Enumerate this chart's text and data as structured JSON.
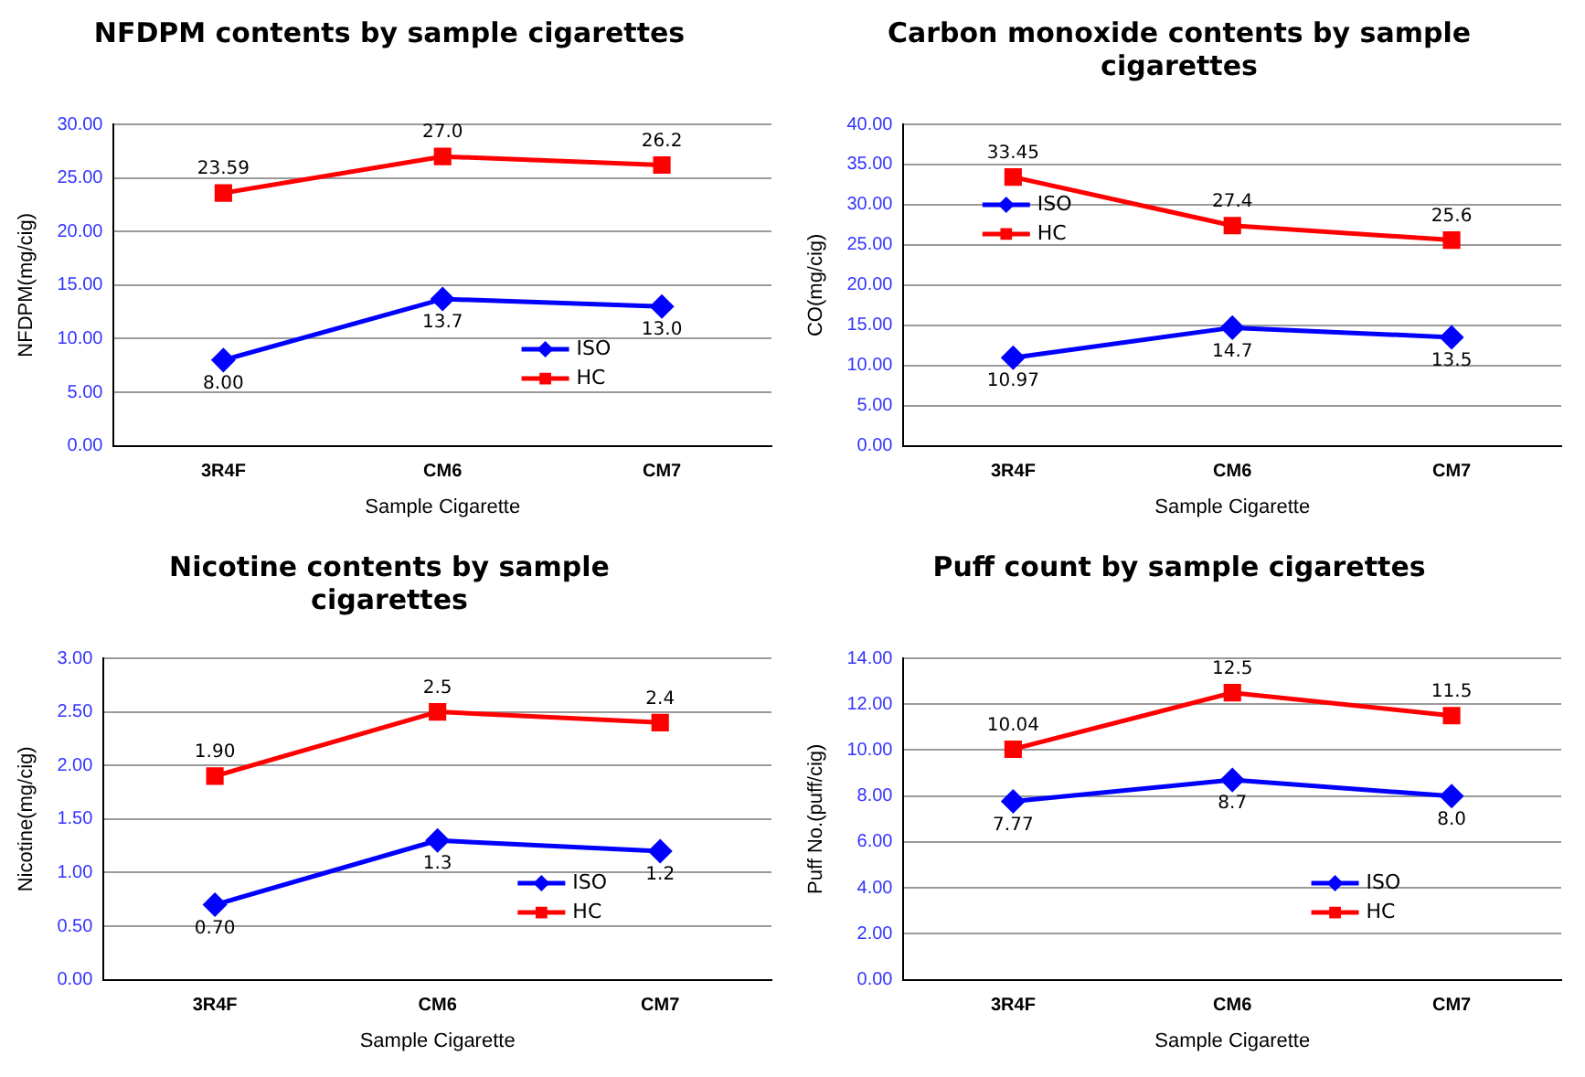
{
  "chart_data": [
    {
      "type": "line",
      "title": "NFDPM contents by sample cigarettes",
      "xlabel": "Sample Cigarette",
      "ylabel": "NFDPM(mg/cig)",
      "categories": [
        "3R4F",
        "CM6",
        "CM7"
      ],
      "series": [
        {
          "name": "ISO",
          "color": "#0000ff",
          "marker": "diamond",
          "values": [
            8.0,
            13.7,
            13.0
          ],
          "value_labels": [
            "8.00",
            "13.7",
            "13.0"
          ]
        },
        {
          "name": "HC",
          "color": "#ff0000",
          "marker": "square",
          "values": [
            23.59,
            27.0,
            26.2
          ],
          "value_labels": [
            "23.59",
            "27.0",
            "26.2"
          ]
        }
      ],
      "ylim": [
        0,
        30
      ],
      "yticks": [
        {
          "value": 0,
          "label": "0.00"
        },
        {
          "value": 5,
          "label": "5.00"
        },
        {
          "value": 10,
          "label": "10.00"
        },
        {
          "value": 15,
          "label": "15.00"
        },
        {
          "value": 20,
          "label": "20.00"
        },
        {
          "value": 25,
          "label": "25.00"
        },
        {
          "value": 30,
          "label": "30.00"
        }
      ],
      "grid": "y",
      "legend": "bottom right"
    },
    {
      "type": "line",
      "title": "Carbon monoxide contents by sample cigarettes",
      "xlabel": "Sample Cigarette",
      "ylabel": "CO(mg/cig)",
      "categories": [
        "3R4F",
        "CM6",
        "CM7"
      ],
      "series": [
        {
          "name": "ISO",
          "color": "#0000ff",
          "marker": "diamond",
          "values": [
            10.97,
            14.7,
            13.5
          ],
          "value_labels": [
            "10.97",
            "14.7",
            "13.5"
          ]
        },
        {
          "name": "HC",
          "color": "#ff0000",
          "marker": "square",
          "values": [
            33.45,
            27.4,
            25.6
          ],
          "value_labels": [
            "33.45",
            "27.4",
            "25.6"
          ]
        }
      ],
      "ylim": [
        0,
        40
      ],
      "yticks": [
        {
          "value": 0,
          "label": "0.00"
        },
        {
          "value": 5,
          "label": "5.00"
        },
        {
          "value": 10,
          "label": "10.00"
        },
        {
          "value": 15,
          "label": "15.00"
        },
        {
          "value": 20,
          "label": "20.00"
        },
        {
          "value": 25,
          "label": "25.00"
        },
        {
          "value": 30,
          "label": "30.00"
        },
        {
          "value": 35,
          "label": "35.00"
        },
        {
          "value": 40,
          "label": "40.00"
        }
      ],
      "grid": "y",
      "legend": "left"
    },
    {
      "type": "line",
      "title": "Nicotine contents by sample cigarettes",
      "xlabel": "Sample Cigarette",
      "ylabel": "Nicotine(mg/cig)",
      "categories": [
        "3R4F",
        "CM6",
        "CM7"
      ],
      "series": [
        {
          "name": "ISO",
          "color": "#0000ff",
          "marker": "diamond",
          "values": [
            0.7,
            1.3,
            1.2
          ],
          "value_labels": [
            "0.70",
            "1.3",
            "1.2"
          ]
        },
        {
          "name": "HC",
          "color": "#ff0000",
          "marker": "square",
          "values": [
            1.9,
            2.5,
            2.4
          ],
          "value_labels": [
            "1.90",
            "2.5",
            "2.4"
          ]
        }
      ],
      "ylim": [
        0,
        3
      ],
      "yticks": [
        {
          "value": 0,
          "label": "0.00"
        },
        {
          "value": 0.5,
          "label": "0.50"
        },
        {
          "value": 1,
          "label": "1.00"
        },
        {
          "value": 1.5,
          "label": "1.50"
        },
        {
          "value": 2,
          "label": "2.00"
        },
        {
          "value": 2.5,
          "label": "2.50"
        },
        {
          "value": 3,
          "label": "3.00"
        }
      ],
      "grid": "y",
      "legend": "bottom right"
    },
    {
      "type": "line",
      "title": "Puff count by sample cigarettes",
      "xlabel": "Sample Cigarette",
      "ylabel": "Puff No.(puff/cig)",
      "categories": [
        "3R4F",
        "CM6",
        "CM7"
      ],
      "series": [
        {
          "name": "ISO",
          "color": "#0000ff",
          "marker": "diamond",
          "values": [
            7.77,
            8.7,
            8.0
          ],
          "value_labels": [
            "7.77",
            "8.7",
            "8.0"
          ]
        },
        {
          "name": "HC",
          "color": "#ff0000",
          "marker": "square",
          "values": [
            10.04,
            12.5,
            11.5
          ],
          "value_labels": [
            "10.04",
            "12.5",
            "11.5"
          ]
        }
      ],
      "ylim": [
        0,
        14
      ],
      "yticks": [
        {
          "value": 0,
          "label": "0.00"
        },
        {
          "value": 2,
          "label": "2.00"
        },
        {
          "value": 4,
          "label": "4.00"
        },
        {
          "value": 6,
          "label": "6.00"
        },
        {
          "value": 8,
          "label": "8.00"
        },
        {
          "value": 10,
          "label": "10.00"
        },
        {
          "value": 12,
          "label": "12.00"
        },
        {
          "value": 14,
          "label": "14.00"
        }
      ],
      "grid": "y",
      "legend": "bottom right"
    }
  ]
}
